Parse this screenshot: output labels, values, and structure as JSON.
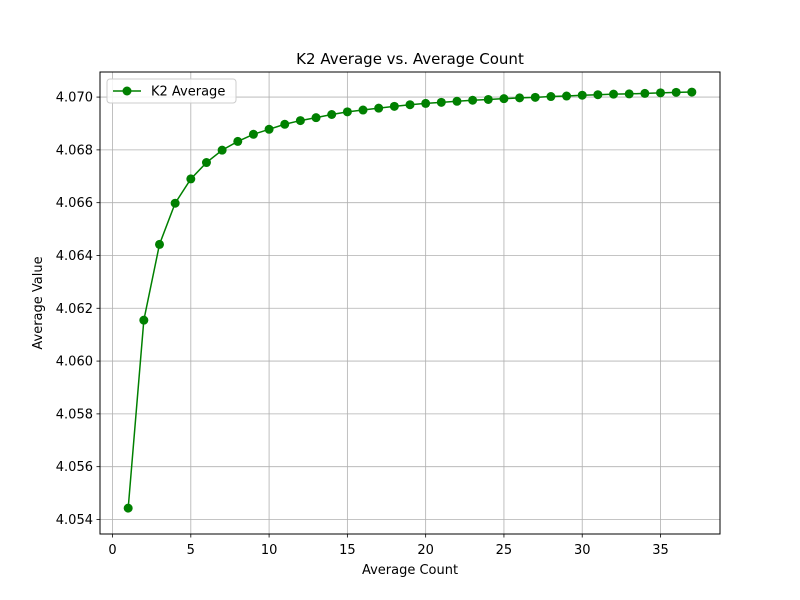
{
  "chart_data": {
    "type": "line",
    "title": "K2 Average vs. Average Count",
    "xlabel": "Average Count",
    "ylabel": "Average Value",
    "xlim": [
      -0.8,
      38.8
    ],
    "ylim": [
      4.05345,
      4.07095
    ],
    "xticks": [
      0,
      5,
      10,
      15,
      20,
      25,
      30,
      35
    ],
    "yticks": [
      4.054,
      4.056,
      4.058,
      4.06,
      4.062,
      4.064,
      4.066,
      4.068,
      4.07
    ],
    "grid": true,
    "legend_position": "top-left",
    "series": [
      {
        "name": "K2 Average",
        "color": "#008000",
        "marker": "circle",
        "x": [
          1,
          2,
          3,
          4,
          5,
          6,
          7,
          8,
          9,
          10,
          11,
          12,
          13,
          14,
          15,
          16,
          17,
          18,
          19,
          20,
          21,
          22,
          23,
          24,
          25,
          26,
          27,
          28,
          29,
          30,
          31,
          32,
          33,
          34,
          35,
          36,
          37
        ],
        "y": [
          4.05443,
          4.06155,
          4.06442,
          4.06598,
          4.0669,
          4.06752,
          4.06799,
          4.06832,
          4.06859,
          4.06878,
          4.06897,
          4.06911,
          4.06922,
          4.06934,
          4.06944,
          4.06951,
          4.06958,
          4.06965,
          4.06971,
          4.06976,
          4.0698,
          4.06984,
          4.06988,
          4.06991,
          4.06994,
          4.06997,
          4.06999,
          4.07002,
          4.07004,
          4.07007,
          4.07009,
          4.07011,
          4.07012,
          4.07014,
          4.07016,
          4.07018,
          4.07019
        ]
      }
    ]
  }
}
